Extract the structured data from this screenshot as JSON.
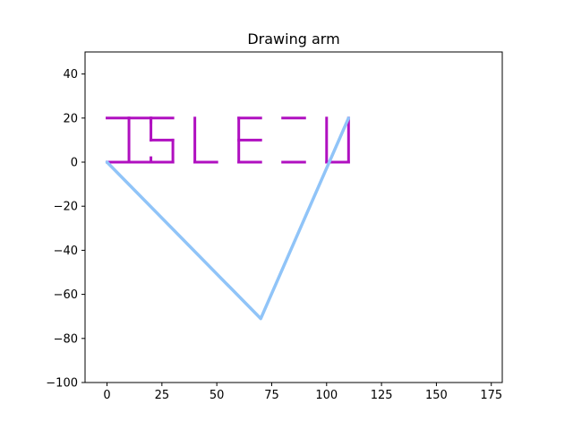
{
  "chart_data": {
    "type": "line",
    "title": "Drawing arm",
    "xlabel": "",
    "ylabel": "",
    "xlim": [
      -10,
      180
    ],
    "ylim": [
      -100,
      50
    ],
    "xticks": [
      0,
      25,
      50,
      75,
      100,
      125,
      150,
      175
    ],
    "yticks": [
      -100,
      -80,
      -60,
      -40,
      -20,
      0,
      20,
      40
    ],
    "grid": false,
    "series": [
      {
        "role": "arm",
        "color": "#90c4f8",
        "x": [
          0,
          70,
          110
        ],
        "y": [
          0,
          -71,
          20
        ]
      },
      {
        "role": "drawn-trace",
        "color": "#b010c0",
        "strokes": [
          {
            "x": [
              0,
              10
            ],
            "y": [
              20,
              20
            ]
          },
          {
            "x": [
              10,
              10
            ],
            "y": [
              20,
              0
            ]
          },
          {
            "x": [
              0,
              10
            ],
            "y": [
              0,
              0
            ]
          },
          {
            "x": [
              10,
              20
            ],
            "y": [
              20,
              20
            ]
          },
          {
            "x": [
              10,
              20
            ],
            "y": [
              0,
              0
            ]
          },
          {
            "x": [
              20,
              20
            ],
            "y": [
              20,
              18
            ]
          },
          {
            "x": [
              20,
              20
            ],
            "y": [
              0,
              2
            ]
          },
          {
            "x": [
              30,
              20
            ],
            "y": [
              20,
              20
            ]
          },
          {
            "x": [
              20,
              20
            ],
            "y": [
              20,
              10
            ]
          },
          {
            "x": [
              20,
              30
            ],
            "y": [
              10,
              10
            ]
          },
          {
            "x": [
              30,
              30
            ],
            "y": [
              10,
              0
            ]
          },
          {
            "x": [
              30,
              20
            ],
            "y": [
              0,
              0
            ]
          },
          {
            "x": [
              40,
              40
            ],
            "y": [
              20,
              0
            ]
          },
          {
            "x": [
              40,
              50
            ],
            "y": [
              0,
              0
            ]
          },
          {
            "x": [
              60,
              70
            ],
            "y": [
              20,
              20
            ]
          },
          {
            "x": [
              60,
              60
            ],
            "y": [
              20,
              0
            ]
          },
          {
            "x": [
              60,
              70
            ],
            "y": [
              0,
              0
            ]
          },
          {
            "x": [
              60,
              70
            ],
            "y": [
              10,
              10
            ]
          },
          {
            "x": [
              80,
              90
            ],
            "y": [
              20,
              20
            ]
          },
          {
            "x": [
              80,
              90
            ],
            "y": [
              0,
              0
            ]
          },
          {
            "x": [
              100,
              100
            ],
            "y": [
              20,
              0
            ]
          },
          {
            "x": [
              100,
              110
            ],
            "y": [
              0,
              0
            ]
          },
          {
            "x": [
              110,
              110
            ],
            "y": [
              0,
              20
            ]
          }
        ]
      }
    ]
  }
}
